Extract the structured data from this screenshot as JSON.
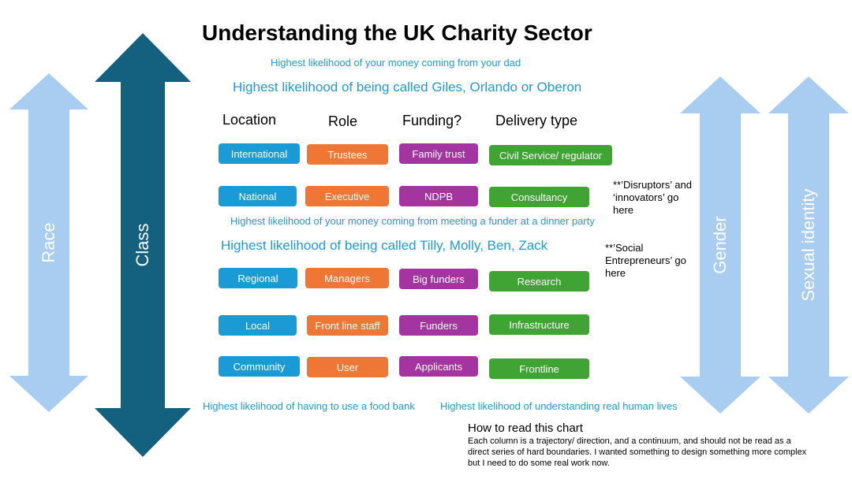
{
  "colors": {
    "light_arrow": "#a9cdf0",
    "dark_arrow": "#14607f",
    "blue_box": "#1b9bd6",
    "orange_box": "#ee7736",
    "purple_box": "#a334a0",
    "green_box": "#3fa434",
    "note_text": "#1f9bd2"
  },
  "title": "Understanding the UK Charity Sector",
  "arrows": {
    "race": "Race",
    "class": "Class",
    "gender": "Gender",
    "sexual_identity": "Sexual identity"
  },
  "notes": {
    "money_from_dad": "Highest likelihood of your money coming from your dad",
    "giles": "Highest likelihood of being called Giles, Orlando or Oberon",
    "dinner_party": "Highest likelihood of your money coming from meeting a funder at a dinner party",
    "tilly": "Highest likelihood of being called Tilly, Molly, Ben, Zack",
    "food_bank": "Highest likelihood of having to use a food bank",
    "human_lives": "Highest likelihood of understanding real human lives"
  },
  "columns": {
    "location": {
      "header": "Location",
      "items": [
        "International",
        "National",
        "Regional",
        "Local",
        "Community"
      ]
    },
    "role": {
      "header": "Role",
      "items": [
        "Trustees",
        "Executive",
        "Managers",
        "Front line staff",
        "User"
      ]
    },
    "funding": {
      "header": "Funding?",
      "items": [
        "Family trust",
        "NDPB",
        "Big funders",
        "Funders",
        "Applicants"
      ]
    },
    "delivery": {
      "header": "Delivery type",
      "items": [
        "Civil Service/ regulator",
        "Consultancy",
        "Research",
        "Infrastructure",
        "Frontline"
      ]
    }
  },
  "side_notes": {
    "disruptors": "**’Disruptors’ and ‘innovators’ go here",
    "social_entrepreneurs": "**’Social Entrepreneurs’ go here"
  },
  "how_to": {
    "title": "How to read this chart",
    "body": "Each column is a trajectory/ direction, and a continuum, and should not be read as a direct series of hard boundaries. I wanted something to design something more complex but I need to do some real work now."
  }
}
